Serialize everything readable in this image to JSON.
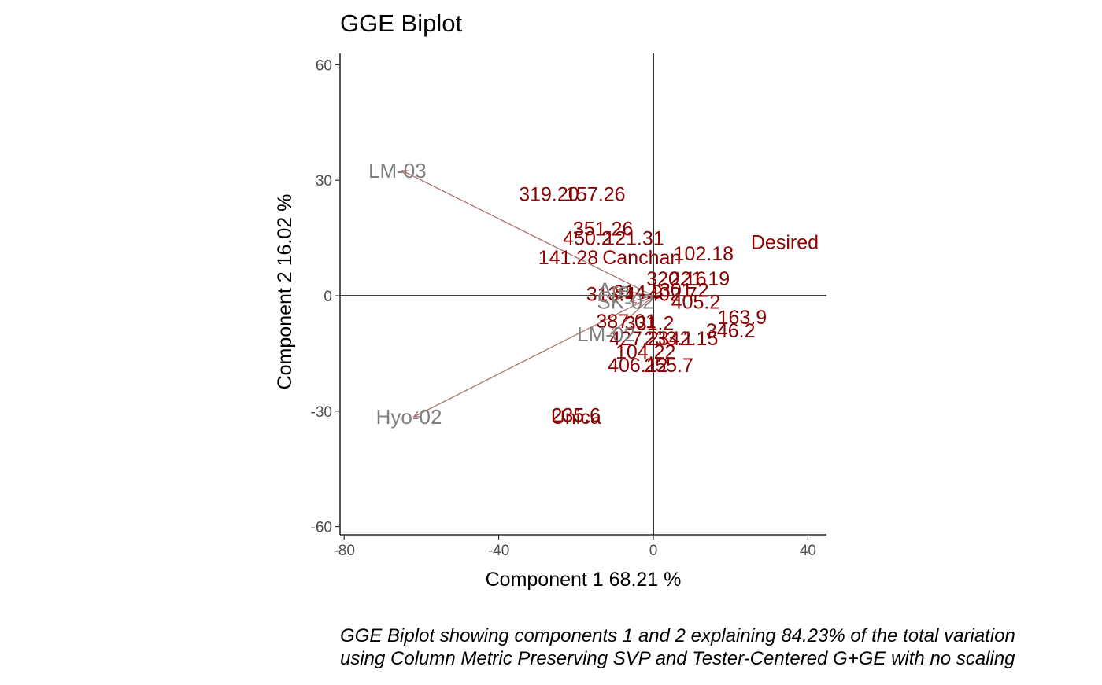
{
  "title": "GGE Biplot",
  "caption": {
    "line1": "GGE Biplot showing components 1 and 2 explaining 84.23% of the total variation",
    "line2": "using Column Metric Preserving SVP and Tester-Centered G+GE with no scaling"
  },
  "chart_data": {
    "type": "scatter",
    "title": "GGE Biplot",
    "xlabel": "Component 1 68.21 %",
    "ylabel": "Component 2 16.02 %",
    "xlim": [
      -82,
      45
    ],
    "ylim": [
      -62,
      63
    ],
    "x_ticks": [
      -80,
      -40,
      0,
      40
    ],
    "y_ticks": [
      -60,
      -30,
      0,
      30,
      60
    ],
    "grid": false,
    "reference_lines": {
      "x": 0,
      "y": 0
    },
    "colors": {
      "genotypes": "#8b0000",
      "environments": "#808080",
      "vectors": "#b07070",
      "axes": "#000000"
    },
    "genotypes": [
      {
        "label": "319.20",
        "x": -27,
        "y": 26.5
      },
      {
        "label": "157.26",
        "x": -15,
        "y": 26.5
      },
      {
        "label": "351.26",
        "x": -13,
        "y": 17.5
      },
      {
        "label": "450.2",
        "x": -17,
        "y": 15.0
      },
      {
        "label": "121.31",
        "x": -5,
        "y": 15.0
      },
      {
        "label": "141.28",
        "x": -22,
        "y": 10.0
      },
      {
        "label": "Canchan",
        "x": -3,
        "y": 10.0
      },
      {
        "label": "102.18",
        "x": 13,
        "y": 11.0
      },
      {
        "label": "320.16",
        "x": 6,
        "y": 4.5
      },
      {
        "label": "221.19",
        "x": 12,
        "y": 4.5
      },
      {
        "label": "313.4",
        "x": -11,
        "y": 0.5
      },
      {
        "label": "314.9",
        "x": -4,
        "y": 1.0
      },
      {
        "label": "402.7",
        "x": 5,
        "y": 0.5
      },
      {
        "label": "301.2",
        "x": 8,
        "y": 1.5
      },
      {
        "label": "405.2",
        "x": 11,
        "y": -1.5
      },
      {
        "label": "163.9",
        "x": 23,
        "y": -5.5
      },
      {
        "label": "346.2",
        "x": 20,
        "y": -9.0
      },
      {
        "label": "387.01",
        "x": -7,
        "y": -6.5
      },
      {
        "label": "331.2",
        "x": -1,
        "y": -7.0
      },
      {
        "label": "233.1",
        "x": 4,
        "y": -11.0
      },
      {
        "label": "427.2",
        "x": -5,
        "y": -11.0
      },
      {
        "label": "342.15",
        "x": 9,
        "y": -11.0
      },
      {
        "label": "104.22",
        "x": -2,
        "y": -14.5
      },
      {
        "label": "406.12",
        "x": -4,
        "y": -18.0
      },
      {
        "label": "255.7",
        "x": 4,
        "y": -18.0
      },
      {
        "label": "Desired",
        "x": 34,
        "y": 14.0
      },
      {
        "label": "235.6",
        "x": -20,
        "y": -31.0
      },
      {
        "label": "Unica",
        "x": -20,
        "y": -31.5
      }
    ],
    "environments": [
      {
        "label": "LM-03",
        "x": -65,
        "y": 32.5
      },
      {
        "label": "Hyo-02",
        "x": -62,
        "y": -31.5
      },
      {
        "label": "LM-02",
        "x": -11,
        "y": -10.0
      },
      {
        "label": "SK-02",
        "x": -6,
        "y": -1.5
      },
      {
        "label": "Are",
        "x": -9,
        "y": 1.5
      }
    ]
  }
}
